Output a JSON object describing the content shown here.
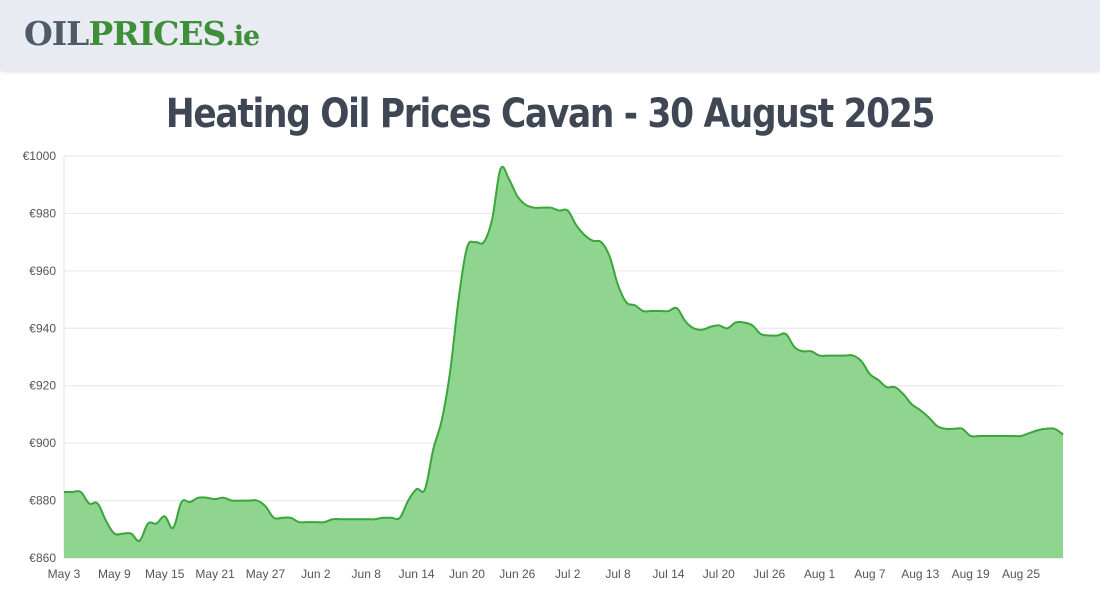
{
  "header": {
    "logo_oil": "OIL",
    "logo_prices": "PRICES",
    "logo_ie": ".ie"
  },
  "title": "Heating Oil Prices Cavan - 30 August 2025",
  "colors": {
    "line": "#3aa53a",
    "fill": "#90d58f",
    "grid": "#e6e6e6",
    "header_bg": "#e8ebf2",
    "title": "#3f4654"
  },
  "chart_data": {
    "type": "area",
    "title": "",
    "xlabel": "",
    "ylabel": "",
    "grid": true,
    "ylim": [
      860,
      1000
    ],
    "y_ticks": [
      "€860",
      "€880",
      "€900",
      "€920",
      "€940",
      "€960",
      "€980",
      "€1000"
    ],
    "y_tick_values": [
      860,
      880,
      900,
      920,
      940,
      960,
      980,
      1000
    ],
    "x_ticks": [
      "May 3",
      "May 9",
      "May 15",
      "May 21",
      "May 27",
      "Jun 2",
      "Jun 8",
      "Jun 14",
      "Jun 20",
      "Jun 26",
      "Jul 2",
      "Jul 8",
      "Jul 14",
      "Jul 20",
      "Jul 26",
      "Aug 1",
      "Aug 7",
      "Aug 13",
      "Aug 19",
      "Aug 25"
    ],
    "series": [
      {
        "x": [
          "May 3",
          "May 4",
          "May 5",
          "May 6",
          "May 7",
          "May 8",
          "May 9",
          "May 10",
          "May 11",
          "May 12",
          "May 13",
          "May 14",
          "May 15",
          "May 16",
          "May 17",
          "May 18",
          "May 19",
          "May 20",
          "May 21",
          "May 22",
          "May 23",
          "May 24",
          "May 25",
          "May 26",
          "May 27",
          "May 28",
          "May 29",
          "May 30",
          "May 31",
          "Jun 1",
          "Jun 2",
          "Jun 3",
          "Jun 4",
          "Jun 5",
          "Jun 6",
          "Jun 7",
          "Jun 8",
          "Jun 9",
          "Jun 10",
          "Jun 11",
          "Jun 12",
          "Jun 13",
          "Jun 14",
          "Jun 15",
          "Jun 16",
          "Jun 17",
          "Jun 18",
          "Jun 19",
          "Jun 20",
          "Jun 21",
          "Jun 22",
          "Jun 23",
          "Jun 24",
          "Jun 25",
          "Jun 26",
          "Jun 27",
          "Jun 28",
          "Jun 29",
          "Jun 30",
          "Jul 1",
          "Jul 2",
          "Jul 3",
          "Jul 4",
          "Jul 5",
          "Jul 6",
          "Jul 7",
          "Jul 8",
          "Jul 9",
          "Jul 10",
          "Jul 11",
          "Jul 12",
          "Jul 13",
          "Jul 14",
          "Jul 15",
          "Jul 16",
          "Jul 17",
          "Jul 18",
          "Jul 19",
          "Jul 20",
          "Jul 21",
          "Jul 22",
          "Jul 23",
          "Jul 24",
          "Jul 25",
          "Jul 26",
          "Jul 27",
          "Jul 28",
          "Jul 29",
          "Jul 30",
          "Jul 31",
          "Aug 1",
          "Aug 2",
          "Aug 3",
          "Aug 4",
          "Aug 5",
          "Aug 6",
          "Aug 7",
          "Aug 8",
          "Aug 9",
          "Aug 10",
          "Aug 11",
          "Aug 12",
          "Aug 13",
          "Aug 14",
          "Aug 15",
          "Aug 16",
          "Aug 17",
          "Aug 18",
          "Aug 19",
          "Aug 20",
          "Aug 21",
          "Aug 22",
          "Aug 23",
          "Aug 24",
          "Aug 25",
          "Aug 26",
          "Aug 27",
          "Aug 28",
          "Aug 29",
          "Aug 30"
        ],
        "values": [
          883,
          883,
          883,
          879,
          879,
          873,
          868.5,
          868.5,
          868.5,
          866,
          872,
          872,
          874.5,
          870.5,
          879.5,
          879.5,
          881,
          881,
          880.5,
          881,
          880,
          880,
          880,
          880,
          878,
          874,
          874,
          874,
          872.5,
          872.5,
          872.5,
          872.5,
          873.5,
          873.5,
          873.5,
          873.5,
          873.5,
          873.5,
          874,
          874,
          874,
          880,
          884,
          884,
          898,
          908,
          925,
          950,
          968,
          970,
          970,
          978,
          995.5,
          992,
          986,
          983,
          982,
          982,
          982,
          981,
          981,
          976,
          972.5,
          970.5,
          970,
          965,
          955,
          949,
          948,
          946,
          946,
          946,
          946,
          947,
          942.5,
          940,
          939.5,
          940.5,
          941,
          940,
          942,
          942,
          941,
          938,
          937.5,
          937.5,
          938,
          933.5,
          932,
          932,
          930.5,
          930.5,
          930.5,
          930.5,
          930.5,
          928.5,
          924,
          922,
          919.5,
          919.5,
          917,
          913.5,
          911.5,
          909,
          906,
          905,
          905,
          905,
          902.5,
          902.5,
          902.5,
          902.5,
          902.5,
          902.5,
          902.5,
          903.5,
          904.5,
          905,
          905,
          903
        ]
      }
    ]
  }
}
